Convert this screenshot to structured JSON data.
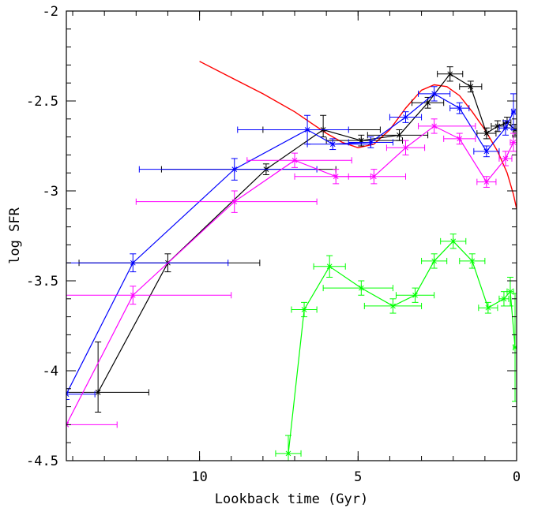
{
  "chart_data": {
    "type": "line",
    "title": "",
    "xlabel": "Lookback time (Gyr)",
    "ylabel": "log SFR",
    "xlim": [
      14.2,
      0
    ],
    "ylim": [
      -4.5,
      -2
    ],
    "x_ticks": [
      10,
      5,
      0
    ],
    "y_ticks": [
      -4.5,
      -4,
      -3.5,
      -3,
      -2.5,
      -2
    ],
    "x_tick_labels": [
      "10",
      "5",
      "0"
    ],
    "y_tick_labels": [
      "-4.5",
      "-4",
      "-3.5",
      "-3",
      "-2.5",
      "-2"
    ],
    "grid": false,
    "legend": "none",
    "model_curve": {
      "color": "#ff0000",
      "points": [
        [
          10.0,
          -2.28
        ],
        [
          9.0,
          -2.37
        ],
        [
          8.0,
          -2.46
        ],
        [
          7.0,
          -2.56
        ],
        [
          6.5,
          -2.62
        ],
        [
          6.0,
          -2.68
        ],
        [
          5.5,
          -2.73
        ],
        [
          5.0,
          -2.76
        ],
        [
          4.5,
          -2.74
        ],
        [
          4.0,
          -2.66
        ],
        [
          3.5,
          -2.54
        ],
        [
          3.0,
          -2.44
        ],
        [
          2.6,
          -2.41
        ],
        [
          2.2,
          -2.42
        ],
        [
          1.8,
          -2.47
        ],
        [
          1.4,
          -2.56
        ],
        [
          1.0,
          -2.66
        ],
        [
          0.6,
          -2.78
        ],
        [
          0.3,
          -2.9
        ],
        [
          0.1,
          -3.02
        ],
        [
          0.0,
          -3.1
        ]
      ]
    },
    "series": [
      {
        "color": "#000000",
        "points": [
          [
            13.2,
            -4.12,
            1.6,
            1.6,
            0.11,
            0.28
          ],
          [
            11.0,
            -3.4,
            2.8,
            2.9,
            0.05,
            0.05
          ],
          [
            7.9,
            -2.88,
            3.3,
            2.2,
            0.03,
            0.03
          ],
          [
            6.1,
            -2.66,
            1.9,
            1.8,
            0.04,
            0.08
          ],
          [
            4.9,
            -2.72,
            1.1,
            1.3,
            0.03,
            0.03
          ],
          [
            3.7,
            -2.69,
            1.0,
            0.9,
            0.03,
            0.03
          ],
          [
            2.8,
            -2.51,
            0.5,
            0.5,
            0.03,
            0.03
          ],
          [
            2.1,
            -2.35,
            0.4,
            0.4,
            0.04,
            0.04
          ],
          [
            1.45,
            -2.42,
            0.35,
            0.35,
            0.03,
            0.03
          ],
          [
            0.95,
            -2.68,
            0.3,
            0.3,
            0.03,
            0.03
          ],
          [
            0.6,
            -2.64,
            0.2,
            0.2,
            0.03,
            0.03
          ],
          [
            0.3,
            -2.62,
            0.12,
            0.12,
            0.03,
            0.03
          ],
          [
            0.05,
            -2.66,
            0.05,
            0.05,
            0.03,
            0.03
          ]
        ]
      },
      {
        "color": "#0000ff",
        "points": [
          [
            14.2,
            -4.13,
            0.9,
            0.9,
            0.03,
            0.03
          ],
          [
            12.1,
            -3.4,
            3.0,
            3.0,
            0.05,
            0.05
          ],
          [
            8.9,
            -2.88,
            3.0,
            2.6,
            0.06,
            0.06
          ],
          [
            6.6,
            -2.66,
            2.2,
            1.3,
            0.08,
            0.08
          ],
          [
            5.8,
            -2.74,
            0.8,
            1.2,
            0.03,
            0.03
          ],
          [
            4.6,
            -2.73,
            0.7,
            0.7,
            0.03,
            0.03
          ],
          [
            3.5,
            -2.59,
            0.5,
            0.5,
            0.03,
            0.03
          ],
          [
            2.6,
            -2.46,
            0.5,
            0.5,
            0.04,
            0.04
          ],
          [
            1.8,
            -2.54,
            0.3,
            0.3,
            0.03,
            0.03
          ],
          [
            0.95,
            -2.78,
            0.4,
            0.4,
            0.03,
            0.03
          ],
          [
            0.35,
            -2.65,
            0.2,
            0.2,
            0.04,
            0.04
          ],
          [
            0.1,
            -2.56,
            0.05,
            0.05,
            0.1,
            0.1
          ]
        ]
      },
      {
        "color": "#ff00ff",
        "points": [
          [
            14.2,
            -4.3,
            1.6,
            1.6,
            0.0,
            0.0
          ],
          [
            12.1,
            -3.58,
            3.1,
            3.1,
            0.05,
            0.05
          ],
          [
            8.9,
            -3.06,
            3.1,
            2.6,
            0.06,
            0.06
          ],
          [
            7.0,
            -2.83,
            1.5,
            1.8,
            0.04,
            0.04
          ],
          [
            5.7,
            -2.92,
            1.3,
            1.1,
            0.04,
            0.04
          ],
          [
            4.5,
            -2.92,
            0.8,
            1.0,
            0.04,
            0.04
          ],
          [
            3.5,
            -2.76,
            0.6,
            0.6,
            0.04,
            0.04
          ],
          [
            2.6,
            -2.64,
            0.5,
            1.3,
            0.04,
            0.04
          ],
          [
            1.8,
            -2.71,
            0.5,
            0.5,
            0.03,
            0.03
          ],
          [
            0.95,
            -2.95,
            0.3,
            0.3,
            0.03,
            0.03
          ],
          [
            0.35,
            -2.82,
            0.2,
            0.2,
            0.04,
            0.04
          ],
          [
            0.1,
            -2.73,
            0.1,
            0.1,
            0.05,
            0.05
          ]
        ]
      },
      {
        "color": "#00ff00",
        "points": [
          [
            7.2,
            -4.46,
            0.4,
            0.4,
            0.1,
            0.1
          ],
          [
            6.7,
            -3.66,
            0.4,
            0.4,
            0.04,
            0.04
          ],
          [
            5.9,
            -3.42,
            0.5,
            0.5,
            0.06,
            0.06
          ],
          [
            4.9,
            -3.54,
            1.2,
            1.0,
            0.04,
            0.04
          ],
          [
            3.9,
            -3.64,
            0.9,
            0.9,
            0.04,
            0.04
          ],
          [
            3.2,
            -3.58,
            0.6,
            0.6,
            0.04,
            0.04
          ],
          [
            2.6,
            -3.39,
            0.4,
            0.4,
            0.04,
            0.04
          ],
          [
            2.0,
            -3.28,
            0.4,
            0.4,
            0.04,
            0.04
          ],
          [
            1.4,
            -3.39,
            0.4,
            0.4,
            0.04,
            0.04
          ],
          [
            0.9,
            -3.65,
            0.3,
            0.3,
            0.03,
            0.03
          ],
          [
            0.4,
            -3.6,
            0.15,
            0.15,
            0.04,
            0.04
          ],
          [
            0.2,
            -3.56,
            0.1,
            0.1,
            0.08,
            0.08
          ],
          [
            0.05,
            -3.87,
            0.05,
            0.05,
            0.3,
            0.3
          ]
        ]
      }
    ]
  }
}
